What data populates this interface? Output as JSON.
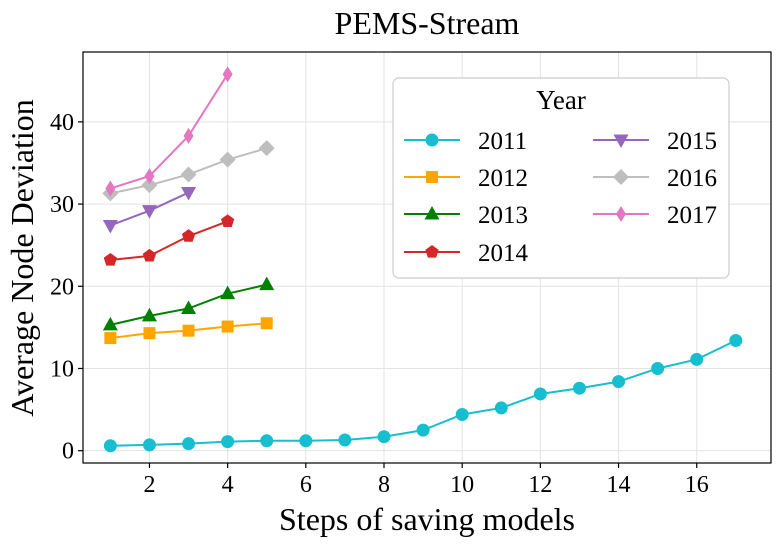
{
  "chart_data": {
    "type": "line",
    "title": "PEMS-Stream",
    "xlabel": "Steps of saving models",
    "ylabel": "Average Node Deviation",
    "xlim": [
      0.3,
      17.9
    ],
    "ylim": [
      -1.5,
      48.5
    ],
    "xticks": [
      2,
      4,
      6,
      8,
      10,
      12,
      14,
      16
    ],
    "yticks": [
      0,
      10,
      20,
      30,
      40
    ],
    "grid": true,
    "legend": {
      "title": "Year",
      "placement": "upper-right",
      "columns": 2
    },
    "series": [
      {
        "name": "2011",
        "color": "#17BECF",
        "marker": "circle",
        "x": [
          1,
          2,
          3,
          4,
          5,
          6,
          7,
          8,
          9,
          10,
          11,
          12,
          13,
          14,
          15,
          16,
          17
        ],
        "y": [
          0.6,
          0.7,
          0.85,
          1.1,
          1.2,
          1.2,
          1.3,
          1.7,
          2.5,
          4.4,
          5.2,
          6.9,
          7.6,
          8.4,
          10.0,
          11.1,
          13.4
        ]
      },
      {
        "name": "2012",
        "color": "#FFA500",
        "marker": "square",
        "x": [
          1,
          2,
          3,
          4,
          5
        ],
        "y": [
          13.7,
          14.3,
          14.6,
          15.1,
          15.5
        ]
      },
      {
        "name": "2013",
        "color": "#008000",
        "marker": "triangle-up",
        "x": [
          1,
          2,
          3,
          4,
          5
        ],
        "y": [
          15.3,
          16.4,
          17.3,
          19.1,
          20.2
        ]
      },
      {
        "name": "2014",
        "color": "#D62728",
        "marker": "pentagon",
        "x": [
          1,
          2,
          3,
          4
        ],
        "y": [
          23.2,
          23.7,
          26.1,
          27.9
        ]
      },
      {
        "name": "2015",
        "color": "#9467BD",
        "marker": "triangle-down",
        "x": [
          1,
          2,
          3
        ],
        "y": [
          27.4,
          29.2,
          31.4
        ]
      },
      {
        "name": "2016",
        "color": "#BEBEBE",
        "marker": "diamond",
        "x": [
          1,
          2,
          3,
          4,
          5
        ],
        "y": [
          31.3,
          32.3,
          33.6,
          35.4,
          36.8
        ]
      },
      {
        "name": "2017",
        "color": "#E377C2",
        "marker": "thin-diamond",
        "x": [
          1,
          2,
          3,
          4
        ],
        "y": [
          31.9,
          33.4,
          38.3,
          45.8
        ]
      }
    ]
  }
}
